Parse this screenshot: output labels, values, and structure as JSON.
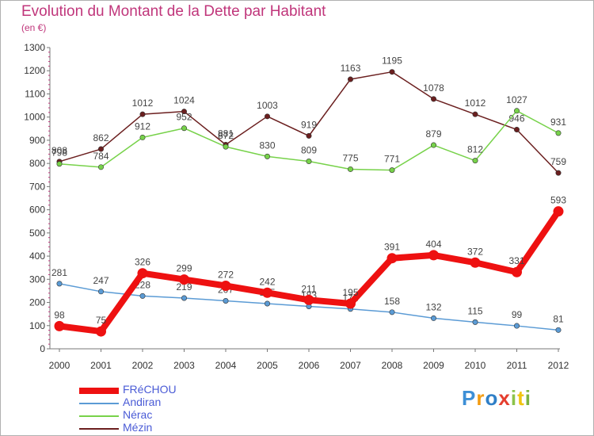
{
  "chart_data": {
    "type": "line",
    "title": "Evolution du Montant de la Dette par Habitant",
    "subtitle": "(en €)",
    "x": [
      2000,
      2001,
      2002,
      2003,
      2004,
      2005,
      2006,
      2007,
      2008,
      2009,
      2010,
      2011,
      2012
    ],
    "ylim": [
      0,
      1300
    ],
    "yticks": [
      0,
      100,
      200,
      300,
      400,
      500,
      600,
      700,
      800,
      900,
      1000,
      1100,
      1200,
      1300
    ],
    "grid": false,
    "legend_position": "bottom-left",
    "series": [
      {
        "name": "Mézin",
        "color": "#6b1f1f",
        "values": [
          808,
          862,
          1012,
          1024,
          881,
          1003,
          919,
          1163,
          1195,
          1078,
          1012,
          946,
          759
        ]
      },
      {
        "name": "Nérac",
        "color": "#77d24a",
        "values": [
          798,
          784,
          912,
          952,
          872,
          830,
          809,
          775,
          771,
          879,
          812,
          1027,
          931
        ]
      },
      {
        "name": "Andiran",
        "color": "#5b9bd5",
        "values": [
          281,
          247,
          228,
          219,
          207,
          195,
          183,
          172,
          158,
          132,
          115,
          99,
          81
        ]
      },
      {
        "name": "FRéCHOU",
        "color": "#ee1111",
        "values": [
          98,
          75,
          326,
          299,
          272,
          242,
          211,
          195,
          391,
          404,
          372,
          331,
          593
        ]
      }
    ],
    "legend_order": [
      "FRéCHOU",
      "Andiran",
      "Nérac",
      "Mézin"
    ]
  },
  "brand": {
    "letters": [
      "P",
      "r",
      "o",
      "x",
      "i",
      "t",
      "i"
    ],
    "colors": [
      "#3d8fd6",
      "#f39c12",
      "#2f7fc7",
      "#e53e2e",
      "#8bc34a",
      "#f1c40f",
      "#7cb342"
    ]
  }
}
